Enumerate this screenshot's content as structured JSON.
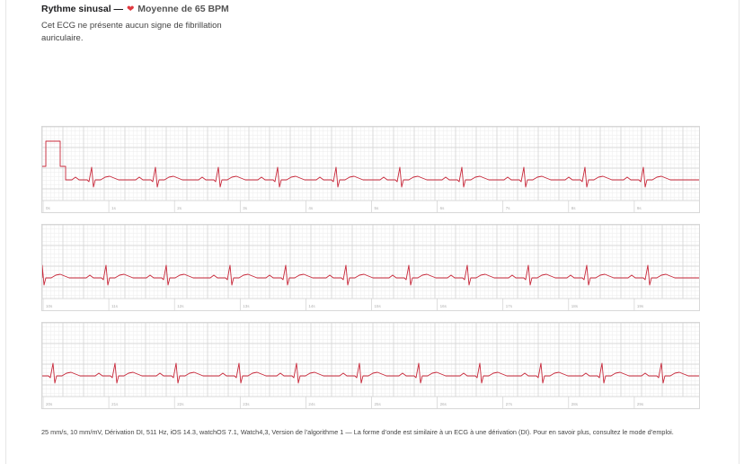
{
  "header": {
    "rhythm": "Rythme sinusal",
    "separator": "—",
    "heart_icon": "heart-icon",
    "average": "Moyenne de 65 BPM",
    "description": "Cet ECG ne présente aucun signe de fibrillation auriculaire."
  },
  "colors": {
    "trace": "#c8283a",
    "grid_major": "#d0d0d0",
    "grid_minor": "#ececec",
    "heart": "#e0383e"
  },
  "strips": [
    {
      "labels": [
        "0s",
        "1s",
        "2s",
        "3s",
        "4s",
        "5s",
        "6s",
        "7s",
        "8s",
        "9s"
      ]
    },
    {
      "labels": [
        "10s",
        "11s",
        "12s",
        "13s",
        "14s",
        "15s",
        "16s",
        "17s",
        "18s",
        "19s"
      ]
    },
    {
      "labels": [
        "20s",
        "21s",
        "22s",
        "23s",
        "24s",
        "25s",
        "26s",
        "27s",
        "28s",
        "29s"
      ]
    }
  ],
  "footer": {
    "text": "25 mm/s, 10 mm/mV, Dérivation DI, 511 Hz, iOS 14.3, watchOS 7.1, Watch4,3, Version de l’algorithme 1 — La forme d’onde est similaire à un ECG à une dérivation (DI). Pour en savoir plus, consultez le mode d’emploi."
  }
}
